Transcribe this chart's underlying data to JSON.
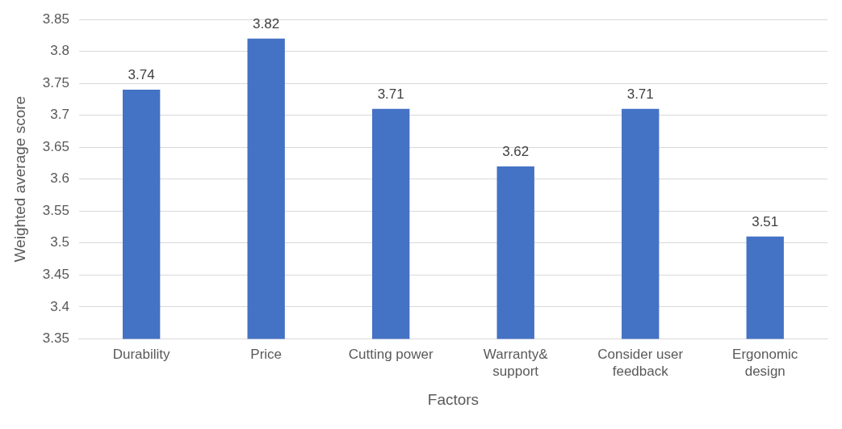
{
  "chart_data": {
    "type": "bar",
    "xlabel": "Factors",
    "ylabel": "Weighted average score",
    "categories": [
      "Durability",
      "Price",
      "Cutting power",
      "Warranty& support",
      "Consider user feedback",
      "Ergonomic design"
    ],
    "values": [
      3.74,
      3.82,
      3.71,
      3.62,
      3.71,
      3.51
    ],
    "color": "#4472c4",
    "ylim": [
      3.35,
      3.85
    ],
    "yticks": [
      3.35,
      3.4,
      3.45,
      3.5,
      3.55,
      3.6,
      3.65,
      3.7,
      3.75,
      3.8,
      3.85
    ],
    "grid": "y",
    "data_labels": true,
    "legend": false
  }
}
